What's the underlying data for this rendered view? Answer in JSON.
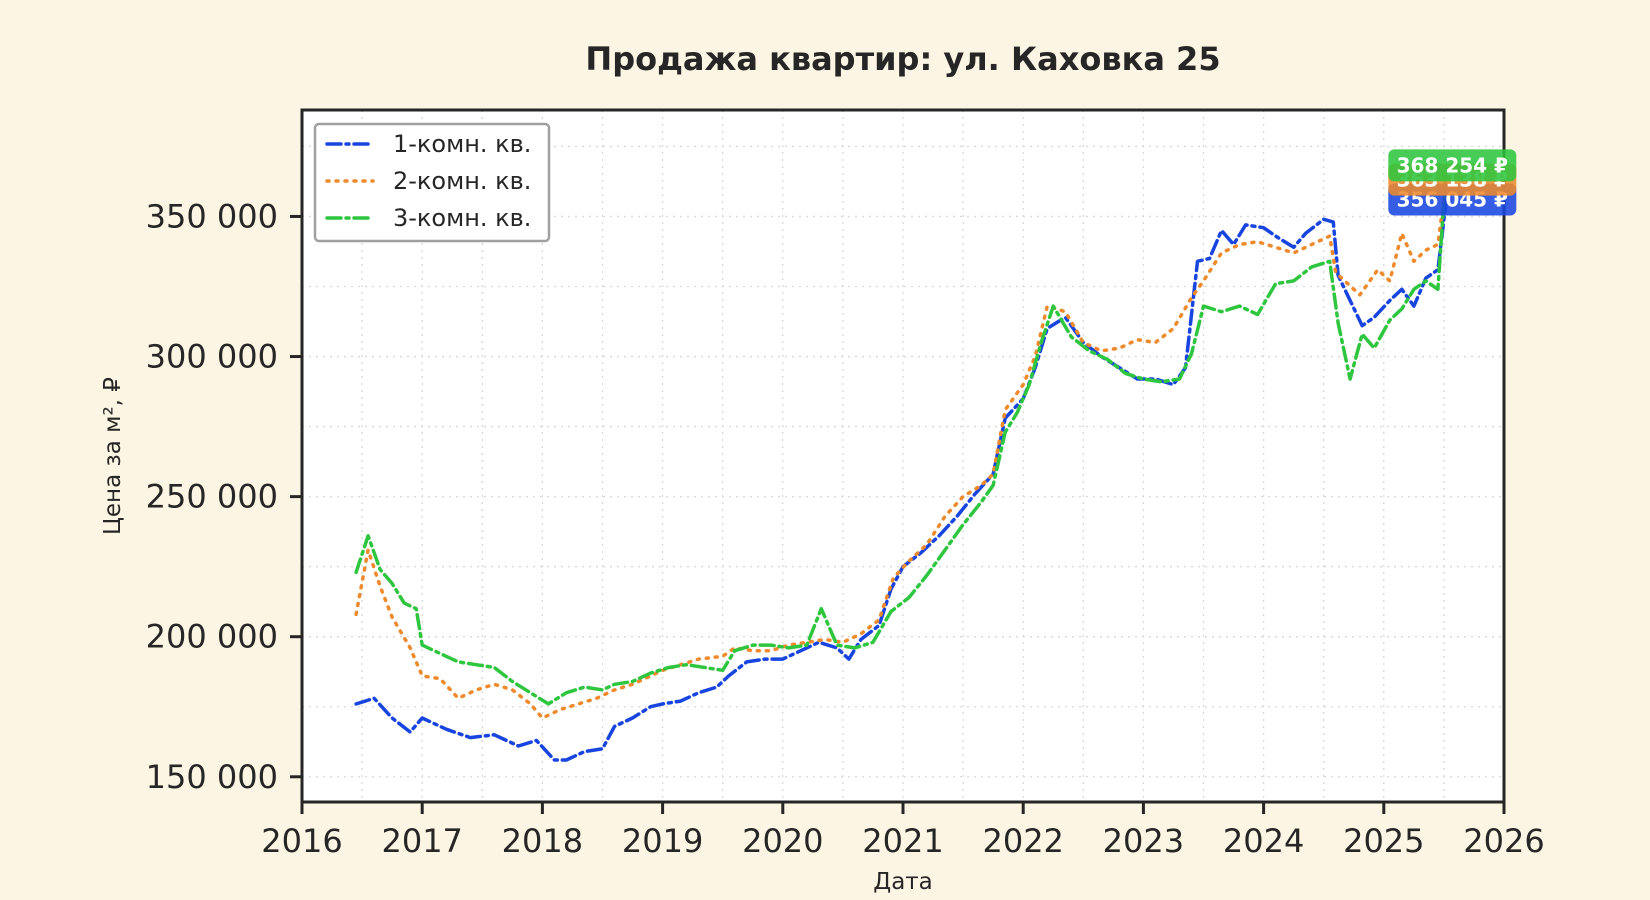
{
  "chart_data": {
    "type": "line",
    "title": "Продажа квартир: ул. Каховка 25",
    "xlabel": "Дата",
    "ylabel": "Цена за м², ₽",
    "xlim": [
      2016.0,
      2026.0
    ],
    "ylim": [
      141000,
      388000
    ],
    "x_ticks": [
      2016,
      2017,
      2018,
      2019,
      2020,
      2021,
      2022,
      2023,
      2024,
      2025,
      2026
    ],
    "x_tick_labels": [
      "2016",
      "2017",
      "2018",
      "2019",
      "2020",
      "2021",
      "2022",
      "2023",
      "2024",
      "2025",
      "2026"
    ],
    "y_ticks": [
      150000,
      200000,
      250000,
      300000,
      350000
    ],
    "y_tick_labels": [
      "150 000",
      "200 000",
      "250 000",
      "300 000",
      "350 000"
    ],
    "grid": true,
    "legend": "top-left",
    "series": [
      {
        "name": "1-комн. кв.",
        "color": "#1845e0",
        "dash": "dashdot",
        "end_label": "356 045 ₽",
        "points": [
          [
            2016.45,
            176000
          ],
          [
            2016.6,
            178000
          ],
          [
            2016.75,
            171000
          ],
          [
            2016.9,
            166000
          ],
          [
            2017.0,
            171000
          ],
          [
            2017.2,
            167000
          ],
          [
            2017.4,
            164000
          ],
          [
            2017.6,
            165000
          ],
          [
            2017.8,
            161000
          ],
          [
            2017.95,
            163000
          ],
          [
            2018.1,
            156000
          ],
          [
            2018.2,
            156000
          ],
          [
            2018.35,
            159000
          ],
          [
            2018.5,
            160000
          ],
          [
            2018.6,
            168000
          ],
          [
            2018.75,
            171000
          ],
          [
            2018.9,
            175000
          ],
          [
            2019.0,
            176000
          ],
          [
            2019.15,
            177000
          ],
          [
            2019.3,
            180000
          ],
          [
            2019.45,
            182000
          ],
          [
            2019.55,
            186000
          ],
          [
            2019.7,
            191000
          ],
          [
            2019.85,
            192000
          ],
          [
            2020.0,
            192000
          ],
          [
            2020.15,
            195000
          ],
          [
            2020.3,
            198000
          ],
          [
            2020.45,
            196000
          ],
          [
            2020.55,
            192000
          ],
          [
            2020.65,
            199000
          ],
          [
            2020.8,
            204000
          ],
          [
            2020.9,
            217000
          ],
          [
            2021.0,
            225000
          ],
          [
            2021.15,
            230000
          ],
          [
            2021.3,
            236000
          ],
          [
            2021.45,
            243000
          ],
          [
            2021.6,
            251000
          ],
          [
            2021.75,
            258000
          ],
          [
            2021.85,
            278000
          ],
          [
            2022.0,
            285000
          ],
          [
            2022.1,
            296000
          ],
          [
            2022.2,
            310000
          ],
          [
            2022.35,
            314000
          ],
          [
            2022.5,
            305000
          ],
          [
            2022.65,
            300000
          ],
          [
            2022.8,
            296000
          ],
          [
            2022.95,
            292000
          ],
          [
            2023.1,
            292000
          ],
          [
            2023.25,
            290000
          ],
          [
            2023.35,
            296000
          ],
          [
            2023.45,
            334000
          ],
          [
            2023.55,
            335000
          ],
          [
            2023.65,
            345000
          ],
          [
            2023.75,
            340000
          ],
          [
            2023.85,
            347000
          ],
          [
            2024.0,
            346000
          ],
          [
            2024.1,
            343000
          ],
          [
            2024.25,
            339000
          ],
          [
            2024.35,
            344000
          ],
          [
            2024.5,
            349000
          ],
          [
            2024.58,
            348000
          ],
          [
            2024.62,
            329000
          ],
          [
            2024.72,
            320000
          ],
          [
            2024.82,
            311000
          ],
          [
            2024.92,
            314000
          ],
          [
            2025.05,
            320000
          ],
          [
            2025.15,
            324000
          ],
          [
            2025.25,
            318000
          ],
          [
            2025.35,
            328000
          ],
          [
            2025.45,
            331000
          ],
          [
            2025.52,
            356045
          ]
        ]
      },
      {
        "name": "2-комн. кв.",
        "color": "#ee8a2c",
        "dash": "dotted",
        "end_label": "363 138 ₽",
        "points": [
          [
            2016.45,
            208000
          ],
          [
            2016.55,
            231000
          ],
          [
            2016.65,
            218000
          ],
          [
            2016.75,
            207000
          ],
          [
            2016.9,
            196000
          ],
          [
            2017.0,
            186000
          ],
          [
            2017.15,
            185000
          ],
          [
            2017.3,
            178000
          ],
          [
            2017.45,
            181000
          ],
          [
            2017.6,
            183000
          ],
          [
            2017.75,
            181000
          ],
          [
            2017.9,
            176000
          ],
          [
            2018.0,
            171000
          ],
          [
            2018.15,
            174000
          ],
          [
            2018.3,
            176000
          ],
          [
            2018.45,
            178000
          ],
          [
            2018.6,
            181000
          ],
          [
            2018.75,
            183000
          ],
          [
            2018.9,
            186000
          ],
          [
            2019.0,
            188000
          ],
          [
            2019.15,
            190000
          ],
          [
            2019.3,
            192000
          ],
          [
            2019.5,
            193000
          ],
          [
            2019.6,
            196000
          ],
          [
            2019.75,
            195000
          ],
          [
            2019.9,
            195000
          ],
          [
            2020.05,
            197000
          ],
          [
            2020.2,
            198000
          ],
          [
            2020.35,
            199000
          ],
          [
            2020.5,
            198000
          ],
          [
            2020.65,
            201000
          ],
          [
            2020.8,
            206000
          ],
          [
            2020.92,
            221000
          ],
          [
            2021.05,
            227000
          ],
          [
            2021.2,
            233000
          ],
          [
            2021.35,
            243000
          ],
          [
            2021.5,
            250000
          ],
          [
            2021.65,
            254000
          ],
          [
            2021.75,
            258000
          ],
          [
            2021.85,
            281000
          ],
          [
            2022.0,
            290000
          ],
          [
            2022.1,
            300000
          ],
          [
            2022.2,
            318000
          ],
          [
            2022.35,
            316000
          ],
          [
            2022.5,
            305000
          ],
          [
            2022.65,
            302000
          ],
          [
            2022.8,
            303000
          ],
          [
            2022.95,
            306000
          ],
          [
            2023.1,
            305000
          ],
          [
            2023.25,
            310000
          ],
          [
            2023.4,
            321000
          ],
          [
            2023.5,
            327000
          ],
          [
            2023.65,
            337000
          ],
          [
            2023.8,
            340000
          ],
          [
            2023.95,
            341000
          ],
          [
            2024.1,
            339000
          ],
          [
            2024.25,
            337000
          ],
          [
            2024.4,
            340000
          ],
          [
            2024.55,
            343000
          ],
          [
            2024.6,
            330000
          ],
          [
            2024.7,
            326000
          ],
          [
            2024.8,
            322000
          ],
          [
            2024.95,
            331000
          ],
          [
            2025.05,
            327000
          ],
          [
            2025.15,
            344000
          ],
          [
            2025.25,
            334000
          ],
          [
            2025.35,
            338000
          ],
          [
            2025.45,
            340000
          ],
          [
            2025.52,
            363138
          ]
        ]
      },
      {
        "name": "3-комн. кв.",
        "color": "#2ec63f",
        "dash": "dashdot",
        "end_label": "368 254 ₽",
        "points": [
          [
            2016.45,
            223000
          ],
          [
            2016.55,
            236000
          ],
          [
            2016.65,
            224000
          ],
          [
            2016.75,
            219000
          ],
          [
            2016.85,
            212000
          ],
          [
            2016.95,
            210000
          ],
          [
            2017.0,
            197000
          ],
          [
            2017.15,
            194000
          ],
          [
            2017.3,
            191000
          ],
          [
            2017.45,
            190000
          ],
          [
            2017.6,
            189000
          ],
          [
            2017.75,
            184000
          ],
          [
            2017.9,
            180000
          ],
          [
            2018.05,
            176000
          ],
          [
            2018.2,
            180000
          ],
          [
            2018.35,
            182000
          ],
          [
            2018.5,
            181000
          ],
          [
            2018.6,
            183000
          ],
          [
            2018.75,
            184000
          ],
          [
            2018.9,
            187000
          ],
          [
            2019.05,
            189000
          ],
          [
            2019.2,
            190000
          ],
          [
            2019.35,
            189000
          ],
          [
            2019.5,
            188000
          ],
          [
            2019.6,
            195000
          ],
          [
            2019.75,
            197000
          ],
          [
            2019.9,
            197000
          ],
          [
            2020.05,
            196000
          ],
          [
            2020.2,
            197000
          ],
          [
            2020.32,
            210000
          ],
          [
            2020.45,
            197000
          ],
          [
            2020.6,
            196000
          ],
          [
            2020.75,
            198000
          ],
          [
            2020.9,
            209000
          ],
          [
            2021.05,
            214000
          ],
          [
            2021.2,
            222000
          ],
          [
            2021.35,
            231000
          ],
          [
            2021.5,
            240000
          ],
          [
            2021.65,
            248000
          ],
          [
            2021.75,
            254000
          ],
          [
            2021.85,
            273000
          ],
          [
            2021.95,
            280000
          ],
          [
            2022.05,
            290000
          ],
          [
            2022.15,
            305000
          ],
          [
            2022.25,
            318000
          ],
          [
            2022.4,
            307000
          ],
          [
            2022.55,
            302000
          ],
          [
            2022.7,
            299000
          ],
          [
            2022.85,
            294000
          ],
          [
            2023.0,
            292000
          ],
          [
            2023.15,
            291000
          ],
          [
            2023.3,
            292000
          ],
          [
            2023.4,
            301000
          ],
          [
            2023.5,
            318000
          ],
          [
            2023.65,
            316000
          ],
          [
            2023.8,
            318000
          ],
          [
            2023.95,
            315000
          ],
          [
            2024.1,
            326000
          ],
          [
            2024.25,
            327000
          ],
          [
            2024.4,
            332000
          ],
          [
            2024.55,
            334000
          ],
          [
            2024.62,
            312000
          ],
          [
            2024.72,
            292000
          ],
          [
            2024.82,
            308000
          ],
          [
            2024.92,
            303000
          ],
          [
            2025.05,
            313000
          ],
          [
            2025.15,
            317000
          ],
          [
            2025.25,
            324000
          ],
          [
            2025.35,
            327000
          ],
          [
            2025.45,
            324000
          ],
          [
            2025.52,
            368254
          ]
        ]
      }
    ]
  }
}
